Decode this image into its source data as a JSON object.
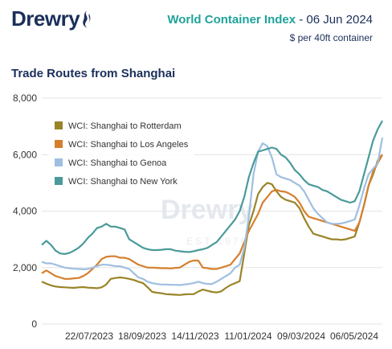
{
  "header": {
    "logo_text": "Drewry",
    "index_name": "World Container Index",
    "index_date": " - 06 Jun 2024",
    "unit": "$ per 40ft container"
  },
  "watermark": {
    "text": "Drewry",
    "sub": "EST 1970"
  },
  "colors": {
    "rotterdam": "#9a8427",
    "los_angeles": "#d57f2e",
    "genoa": "#9fbfe0",
    "new_york": "#4b9a9a"
  },
  "chart_data": {
    "type": "line",
    "title": "Trade Routes from Shanghai",
    "xlabel": "",
    "ylabel": "",
    "ylim": [
      0,
      8000
    ],
    "yticks": [
      "0",
      "2,000",
      "4,000",
      "6,000",
      "8,000"
    ],
    "x_tick_labels": [
      "22/07/2023",
      "18/09/2023",
      "14/11/2023",
      "11/01/2024",
      "09/03/2024",
      "06/05/2024"
    ],
    "legend_position": "top-left",
    "grid": true,
    "series": [
      {
        "name": "WCI: Shanghai to Rotterdam",
        "color": "#9a8427",
        "values": [
          1500,
          1430,
          1370,
          1330,
          1310,
          1300,
          1290,
          1280,
          1300,
          1310,
          1290,
          1280,
          1270,
          1300,
          1400,
          1600,
          1630,
          1650,
          1630,
          1600,
          1560,
          1500,
          1450,
          1300,
          1140,
          1110,
          1090,
          1060,
          1050,
          1040,
          1030,
          1050,
          1060,
          1060,
          1150,
          1220,
          1180,
          1140,
          1120,
          1160,
          1280,
          1380,
          1450,
          1520,
          2500,
          3500,
          4000,
          4600,
          4850,
          5000,
          4950,
          4700,
          4500,
          4400,
          4350,
          4300,
          4100,
          3750,
          3450,
          3200,
          3150,
          3100,
          3050,
          3000,
          3000,
          2980,
          3000,
          3050,
          3100,
          3600,
          4200,
          4900,
          5300,
          5800,
          6000
        ]
      },
      {
        "name": "WCI: Shanghai to Los Angeles",
        "color": "#d57f2e",
        "values": [
          1800,
          1900,
          1800,
          1700,
          1650,
          1600,
          1600,
          1620,
          1630,
          1700,
          1800,
          1950,
          2100,
          2300,
          2380,
          2400,
          2400,
          2350,
          2350,
          2300,
          2200,
          2100,
          2050,
          2000,
          2000,
          1990,
          1980,
          1980,
          1970,
          1990,
          2000,
          2100,
          2200,
          2250,
          2250,
          2000,
          1980,
          1950,
          1950,
          2000,
          2050,
          2100,
          2300,
          2500,
          2900,
          3300,
          3600,
          3900,
          4300,
          4500,
          4700,
          4750,
          4700,
          4680,
          4600,
          4500,
          4300,
          4000,
          3800,
          3750,
          3700,
          3650,
          3600,
          3550,
          3500,
          3450,
          3400,
          3350,
          3300,
          3600,
          4200,
          4900,
          5400,
          5700,
          6000
        ]
      },
      {
        "name": "WCI: Shanghai to Genoa",
        "color": "#9fbfe0",
        "values": [
          2200,
          2150,
          2150,
          2100,
          2050,
          2000,
          1980,
          1960,
          1950,
          1940,
          1950,
          2000,
          2050,
          2100,
          2100,
          2080,
          2050,
          2050,
          2000,
          1950,
          1800,
          1650,
          1600,
          1500,
          1450,
          1420,
          1400,
          1400,
          1390,
          1390,
          1380,
          1400,
          1420,
          1450,
          1500,
          1450,
          1420,
          1420,
          1500,
          1600,
          1700,
          1800,
          2000,
          2100,
          2700,
          3800,
          5300,
          6100,
          6400,
          6300,
          5900,
          5300,
          5200,
          5150,
          5100,
          5000,
          4900,
          4700,
          4400,
          4100,
          3900,
          3750,
          3600,
          3550,
          3550,
          3560,
          3600,
          3650,
          3700,
          4200,
          4800,
          5300,
          5500,
          5700,
          6600
        ]
      },
      {
        "name": "WCI: Shanghai to New York",
        "color": "#4b9a9a",
        "values": [
          2800,
          2950,
          2800,
          2600,
          2500,
          2480,
          2520,
          2600,
          2700,
          2850,
          3050,
          3200,
          3400,
          3450,
          3550,
          3450,
          3450,
          3400,
          3350,
          3000,
          2900,
          2800,
          2700,
          2650,
          2620,
          2620,
          2630,
          2650,
          2650,
          2600,
          2580,
          2560,
          2550,
          2580,
          2620,
          2650,
          2700,
          2800,
          2900,
          3100,
          3300,
          3500,
          3700,
          4000,
          4500,
          5200,
          5700,
          6100,
          6150,
          6200,
          6250,
          6200,
          6000,
          5900,
          5700,
          5450,
          5300,
          5100,
          4950,
          4900,
          4850,
          4750,
          4700,
          4600,
          4500,
          4400,
          4350,
          4300,
          4350,
          4700,
          5300,
          5900,
          6500,
          6900,
          7200
        ]
      }
    ]
  }
}
